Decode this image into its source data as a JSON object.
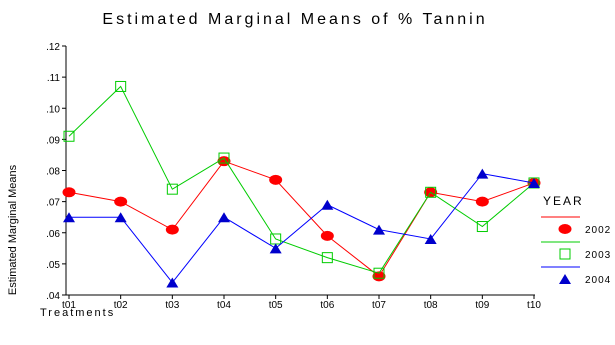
{
  "chart_data": {
    "type": "line",
    "title": "Estimated Marginal Means of % Tannin",
    "xlabel": "Treatments",
    "ylabel": "Estimated Marginal Means",
    "categories": [
      "t01",
      "t02",
      "t03",
      "t04",
      "t05",
      "t06",
      "t07",
      "t08",
      "t09",
      "t10"
    ],
    "y_tick_labels": [
      ".04",
      ".05",
      ".06",
      ".07",
      ".08",
      ".09",
      ".10",
      ".11",
      ".12"
    ],
    "y_ticks": [
      0.04,
      0.05,
      0.06,
      0.07,
      0.08,
      0.09,
      0.1,
      0.11,
      0.12
    ],
    "ylim": [
      0.04,
      0.12
    ],
    "grid": false,
    "legend_title": "YEAR",
    "legend_position": "right",
    "series": [
      {
        "name": "2002",
        "color": "#ff0000",
        "marker": "circle",
        "marker_color": "#ff0000",
        "values": [
          0.073,
          0.07,
          0.061,
          0.083,
          0.077,
          0.059,
          0.046,
          0.073,
          0.07,
          0.076
        ]
      },
      {
        "name": "2003",
        "color": "#00cc00",
        "marker": "open-square",
        "marker_color": "#00cc00",
        "values": [
          0.091,
          0.107,
          0.074,
          0.084,
          0.058,
          0.052,
          0.047,
          0.073,
          0.062,
          0.076
        ]
      },
      {
        "name": "2004",
        "color": "#0000ff",
        "marker": "triangle",
        "marker_color": "#0000cc",
        "values": [
          0.065,
          0.065,
          0.044,
          0.065,
          0.055,
          0.069,
          0.061,
          0.058,
          0.079,
          0.076
        ]
      }
    ]
  }
}
